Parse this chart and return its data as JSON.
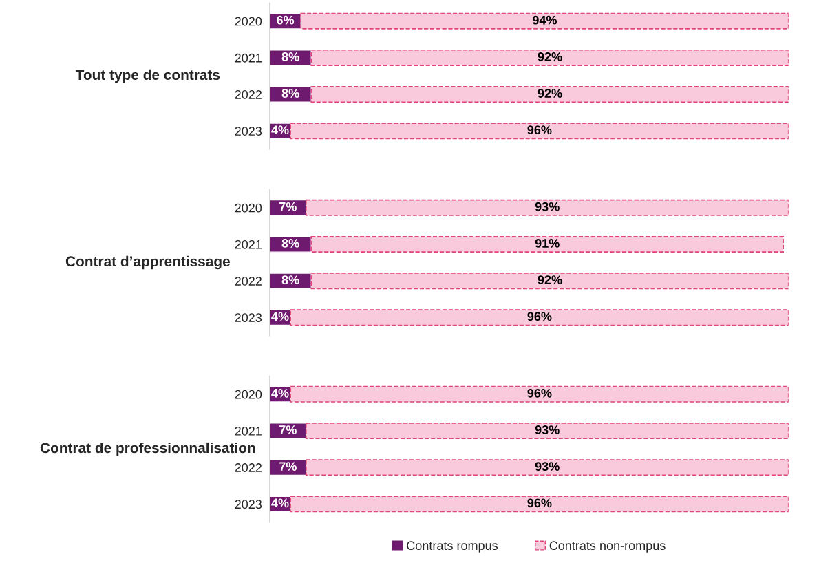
{
  "chart_data": [
    {
      "type": "bar",
      "orientation": "horizontal",
      "stacked": true,
      "ylabel": "Tout type de contrats",
      "categories": [
        "2020",
        "2021",
        "2022",
        "2023"
      ],
      "series": [
        {
          "color": "#6e1a6e",
          "values": [
            6,
            8,
            8,
            4
          ],
          "value_labels": [
            "6%",
            "8%",
            "8%",
            "4%"
          ]
        },
        {
          "color": "#f9cadb",
          "line_style": "dashed",
          "values": [
            94,
            92,
            92,
            96
          ],
          "value_labels": [
            "94%",
            "92%",
            "92%",
            "96%"
          ]
        }
      ]
    },
    {
      "type": "bar",
      "orientation": "horizontal",
      "stacked": true,
      "ylabel": "Contrat d’apprentissage",
      "categories": [
        "2020",
        "2021",
        "2022",
        "2023"
      ],
      "series": [
        {
          "color": "#6e1a6e",
          "values": [
            7,
            8,
            8,
            4
          ],
          "value_labels": [
            "7%",
            "8%",
            "8%",
            "4%"
          ]
        },
        {
          "color": "#f9cadb",
          "line_style": "dashed",
          "values": [
            93,
            91,
            92,
            96
          ],
          "value_labels": [
            "93%",
            "91%",
            "92%",
            "96%"
          ]
        }
      ]
    },
    {
      "type": "bar",
      "orientation": "horizontal",
      "stacked": true,
      "legend": "bottom",
      "ylabel": "Contrat de professionnalisation",
      "categories": [
        "2020",
        "2021",
        "2022",
        "2023"
      ],
      "series": [
        {
          "name": "Contrats rompus",
          "color": "#6e1a6e",
          "values": [
            4,
            7,
            7,
            4
          ],
          "value_labels": [
            "4%",
            "7%",
            "7%",
            "4%"
          ]
        },
        {
          "name": "Contrats non-rompus",
          "color": "#f9cadb",
          "line_style": "dashed",
          "values": [
            96,
            93,
            93,
            96
          ],
          "value_labels": [
            "96%",
            "93%",
            "93%",
            "96%"
          ]
        }
      ]
    }
  ]
}
